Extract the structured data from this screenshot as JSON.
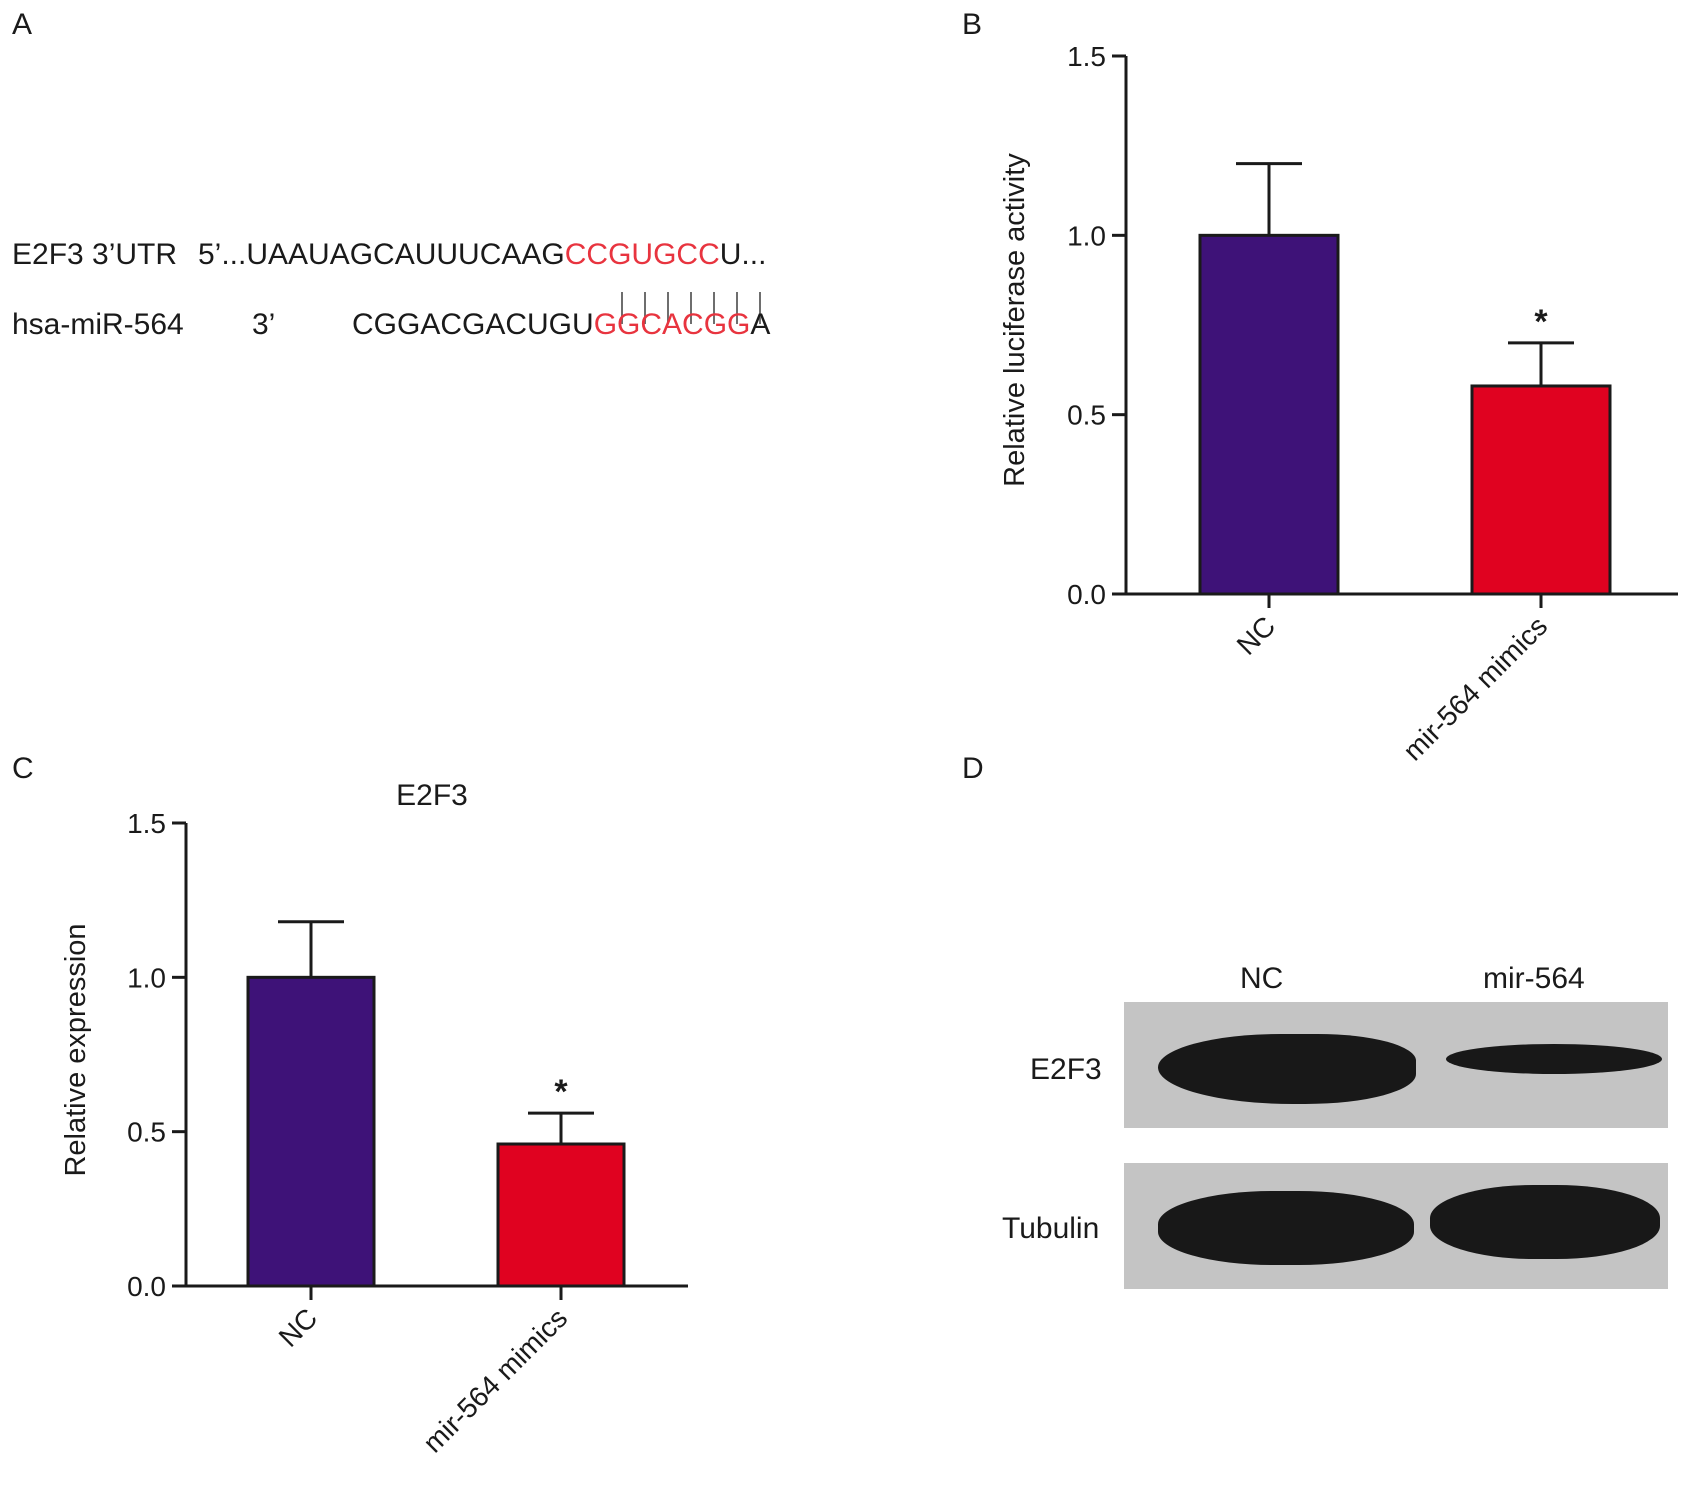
{
  "panels": {
    "a": {
      "letter": "A",
      "rows": [
        {
          "label": "E2F3 3’UTR",
          "prefix": "5’...",
          "seq_before": "UAAUAGCAUUUCAAG",
          "seq_highlight": "CCGUGCC",
          "seq_after": "U..."
        },
        {
          "label": "hsa-miR-564",
          "prefix": "3’",
          "seq_before": "CGGACGACUGU",
          "seq_highlight": "GGCACGG",
          "seq_after": "A"
        }
      ],
      "pair_count": 7
    },
    "b": {
      "letter": "B"
    },
    "c": {
      "letter": "C"
    },
    "d": {
      "letter": "D",
      "lanes": [
        "NC",
        "mir-564"
      ],
      "blots": [
        {
          "label": "E2F3",
          "band_intensity": [
            1.0,
            0.45
          ]
        },
        {
          "label": "Tubulin",
          "band_intensity": [
            1.0,
            1.0
          ]
        }
      ]
    }
  },
  "colors": {
    "nc": "#3e1278",
    "mimic": "#e00220",
    "highlight": "#e8343f",
    "blot_bg": "#c4c4c4",
    "band": "#181818"
  },
  "chart_data": [
    {
      "id": "b",
      "type": "bar",
      "title": "",
      "xlabel": "",
      "ylabel": "Relative luciferase activity",
      "ylim": [
        0,
        1.5
      ],
      "yticks": [
        "0.0",
        "0.5",
        "1.0",
        "1.5"
      ],
      "categories": [
        "NC",
        "mir-564 mimics"
      ],
      "values": [
        1.0,
        0.58
      ],
      "errors": [
        0.2,
        0.12
      ],
      "annotations": [
        "",
        "*"
      ],
      "grid": false
    },
    {
      "id": "c",
      "type": "bar",
      "title": "E2F3",
      "xlabel": "",
      "ylabel": "Relative expression",
      "ylim": [
        0,
        1.5
      ],
      "yticks": [
        "0.0",
        "0.5",
        "1.0",
        "1.5"
      ],
      "categories": [
        "NC",
        "mir-564 mimics"
      ],
      "values": [
        1.0,
        0.46
      ],
      "errors": [
        0.18,
        0.1
      ],
      "annotations": [
        "",
        "*"
      ],
      "grid": false
    }
  ]
}
